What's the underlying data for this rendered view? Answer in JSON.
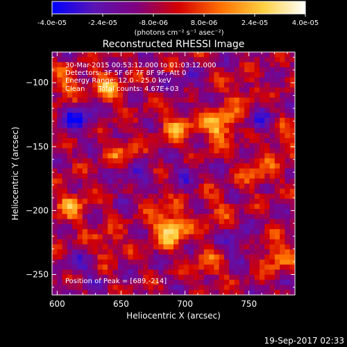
{
  "colorbar": {
    "ticks": [
      "-4.0e-05",
      "-2.4e-05",
      "-8.0e-06",
      "8.0e-06",
      "2.4e-05",
      "4.0e-05"
    ],
    "unit_label": "(photons cm⁻² s⁻¹ asec⁻²)",
    "colors": [
      "#0000ff",
      "#5a14b4",
      "#7f007f",
      "#d40000",
      "#ff7000",
      "#ffd040",
      "#ffffff"
    ]
  },
  "chart_data": {
    "type": "heatmap",
    "title": "Reconstructed RHESSI Image",
    "xlabel": "Heliocentric X (arcsec)",
    "ylabel": "Heliocentric Y (arcsec)",
    "xlim": [
      596,
      786
    ],
    "ylim": [
      -266,
      -76
    ],
    "xticks": [
      600,
      650,
      700,
      750
    ],
    "yticks": [
      -100,
      -150,
      -200,
      -250
    ],
    "value_range": [
      -4e-05,
      4e-05
    ],
    "peak": [
      689,
      -214
    ],
    "annotations": [
      "30-Mar-2015 00:53:12.000 to 01:03:12.000",
      "Detectors: 3F 5F 6F 7F 8F 9F, Att 0",
      "Energy Range: 12.0 - 25.0 keV",
      "Clean      Total counts: 4.67E+03"
    ],
    "peak_label": "Position of Peak = [689,-214]",
    "sources": [
      {
        "x": 689,
        "y": -214,
        "value": 4e-05
      },
      {
        "x": 727,
        "y": -134,
        "value": 3.4e-05
      },
      {
        "x": 695,
        "y": -134,
        "value": 2.4e-05
      },
      {
        "x": 638,
        "y": -104,
        "value": 2.6e-05
      },
      {
        "x": 606,
        "y": -104,
        "value": 2e-05
      },
      {
        "x": 652,
        "y": -154,
        "value": 1.8e-05
      },
      {
        "x": 611,
        "y": -196,
        "value": 2.2e-05
      },
      {
        "x": 757,
        "y": -170,
        "value": 1.8e-05
      },
      {
        "x": 778,
        "y": -146,
        "value": 2e-05
      },
      {
        "x": 770,
        "y": -236,
        "value": 2.2e-05
      },
      {
        "x": 717,
        "y": -244,
        "value": 1.6e-05
      },
      {
        "x": 640,
        "y": -226,
        "value": 1.6e-05
      },
      {
        "x": 676,
        "y": -190,
        "value": 1.2e-05
      },
      {
        "x": 724,
        "y": -200,
        "value": 1.2e-05
      },
      {
        "x": 744,
        "y": -110,
        "value": 1.4e-05
      },
      {
        "x": 618,
        "y": -126,
        "value": -2.6e-05
      },
      {
        "x": 661,
        "y": -175,
        "value": -2e-05
      },
      {
        "x": 700,
        "y": -104,
        "value": -1.2e-05
      },
      {
        "x": 760,
        "y": -132,
        "value": -1.4e-05
      },
      {
        "x": 742,
        "y": -226,
        "value": -1.4e-05
      },
      {
        "x": 620,
        "y": -246,
        "value": -1.2e-05
      },
      {
        "x": 700,
        "y": -170,
        "value": -1e-05
      }
    ]
  },
  "timestamp": "19-Sep-2017 02:33"
}
